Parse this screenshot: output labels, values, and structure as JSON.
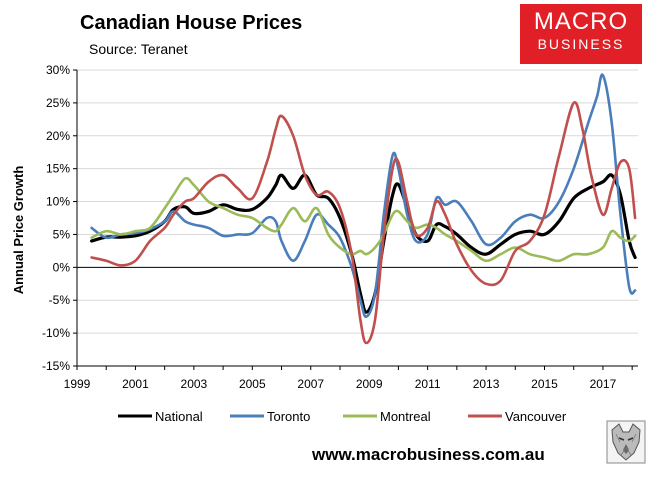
{
  "header": {
    "title": "Canadian House Prices",
    "subtitle": "Source: Teranet"
  },
  "logo": {
    "line1": "MACRO",
    "line2": "BUSINESS",
    "bg_color": "#e01f26"
  },
  "footer": {
    "url": "www.macrobusiness.com.au"
  },
  "chart_data": {
    "type": "line",
    "title": "Canadian House Prices",
    "ylabel": "Annual Price Growth",
    "xlabel": "",
    "xlim": [
      1999,
      2018.2
    ],
    "ylim": [
      -15,
      30
    ],
    "x_ticks": [
      "1999",
      "2001",
      "2003",
      "2005",
      "2007",
      "2009",
      "2011",
      "2013",
      "2015",
      "2017"
    ],
    "y_ticks": [
      "30%",
      "25%",
      "20%",
      "15%",
      "10%",
      "5%",
      "0%",
      "-5%",
      "-10%",
      "-15%"
    ],
    "grid": true,
    "legend_position": "bottom",
    "series": [
      {
        "name": "National",
        "color": "#000000",
        "points": [
          [
            1999.5,
            4.0
          ],
          [
            2000,
            4.6
          ],
          [
            2000.5,
            4.6
          ],
          [
            2001,
            4.8
          ],
          [
            2001.5,
            5.5
          ],
          [
            2002,
            7.0
          ],
          [
            2002.3,
            8.8
          ],
          [
            2002.7,
            9.2
          ],
          [
            2003,
            8.2
          ],
          [
            2003.5,
            8.5
          ],
          [
            2004,
            9.5
          ],
          [
            2004.5,
            8.8
          ],
          [
            2005,
            8.8
          ],
          [
            2005.5,
            10.5
          ],
          [
            2005.8,
            12.5
          ],
          [
            2006,
            14.0
          ],
          [
            2006.4,
            12.0
          ],
          [
            2006.8,
            14.0
          ],
          [
            2007.2,
            11.0
          ],
          [
            2007.6,
            10.5
          ],
          [
            2008,
            7.5
          ],
          [
            2008.4,
            2.0
          ],
          [
            2008.7,
            -4.0
          ],
          [
            2008.9,
            -6.8
          ],
          [
            2009.2,
            -4.0
          ],
          [
            2009.5,
            4.0
          ],
          [
            2009.8,
            11.0
          ],
          [
            2010,
            12.6
          ],
          [
            2010.3,
            9.0
          ],
          [
            2010.6,
            5.0
          ],
          [
            2011,
            4.0
          ],
          [
            2011.3,
            6.5
          ],
          [
            2011.6,
            6.2
          ],
          [
            2012,
            5.0
          ],
          [
            2012.5,
            3.0
          ],
          [
            2013,
            2.0
          ],
          [
            2013.5,
            3.5
          ],
          [
            2014,
            5.0
          ],
          [
            2014.5,
            5.5
          ],
          [
            2015,
            5.0
          ],
          [
            2015.5,
            7.0
          ],
          [
            2016,
            10.5
          ],
          [
            2016.5,
            12.0
          ],
          [
            2017,
            13.0
          ],
          [
            2017.3,
            14.0
          ],
          [
            2017.6,
            11.0
          ],
          [
            2017.9,
            4.0
          ],
          [
            2018.1,
            1.5
          ]
        ]
      },
      {
        "name": "Toronto",
        "color": "#4a7ebb",
        "points": [
          [
            1999.5,
            6.0
          ],
          [
            2000,
            4.5
          ],
          [
            2000.5,
            5.0
          ],
          [
            2001,
            5.2
          ],
          [
            2001.5,
            5.8
          ],
          [
            2002,
            7.0
          ],
          [
            2002.3,
            8.5
          ],
          [
            2002.7,
            7.0
          ],
          [
            2003,
            6.5
          ],
          [
            2003.5,
            6.0
          ],
          [
            2004,
            4.8
          ],
          [
            2004.5,
            5.0
          ],
          [
            2005,
            5.2
          ],
          [
            2005.5,
            7.5
          ],
          [
            2005.8,
            7.0
          ],
          [
            2006,
            4.0
          ],
          [
            2006.4,
            1.0
          ],
          [
            2006.8,
            4.0
          ],
          [
            2007.2,
            8.0
          ],
          [
            2007.6,
            6.5
          ],
          [
            2008,
            4.5
          ],
          [
            2008.4,
            0.0
          ],
          [
            2008.7,
            -5.0
          ],
          [
            2008.9,
            -7.5
          ],
          [
            2009.2,
            -4.0
          ],
          [
            2009.5,
            8.0
          ],
          [
            2009.8,
            17.0
          ],
          [
            2010,
            15.0
          ],
          [
            2010.3,
            8.0
          ],
          [
            2010.6,
            4.0
          ],
          [
            2011,
            5.0
          ],
          [
            2011.3,
            10.5
          ],
          [
            2011.6,
            9.5
          ],
          [
            2012,
            10.0
          ],
          [
            2012.5,
            7.0
          ],
          [
            2013,
            3.5
          ],
          [
            2013.5,
            4.5
          ],
          [
            2014,
            7.0
          ],
          [
            2014.5,
            8.0
          ],
          [
            2015,
            7.5
          ],
          [
            2015.5,
            10.0
          ],
          [
            2016,
            15.0
          ],
          [
            2016.5,
            22.0
          ],
          [
            2016.8,
            26.0
          ],
          [
            2017,
            29.2
          ],
          [
            2017.3,
            22.0
          ],
          [
            2017.6,
            8.0
          ],
          [
            2017.9,
            -3.0
          ],
          [
            2018.1,
            -3.5
          ]
        ]
      },
      {
        "name": "Montreal",
        "color": "#9bbb59",
        "points": [
          [
            1999.5,
            4.5
          ],
          [
            2000,
            5.5
          ],
          [
            2000.5,
            5.0
          ],
          [
            2001,
            5.5
          ],
          [
            2001.5,
            6.0
          ],
          [
            2002,
            9.0
          ],
          [
            2002.3,
            11.0
          ],
          [
            2002.7,
            13.5
          ],
          [
            2003,
            12.5
          ],
          [
            2003.5,
            10.0
          ],
          [
            2004,
            9.0
          ],
          [
            2004.5,
            8.0
          ],
          [
            2005,
            7.5
          ],
          [
            2005.5,
            6.0
          ],
          [
            2005.8,
            5.5
          ],
          [
            2006,
            6.5
          ],
          [
            2006.4,
            9.0
          ],
          [
            2006.8,
            7.0
          ],
          [
            2007.2,
            9.0
          ],
          [
            2007.6,
            5.0
          ],
          [
            2008,
            3.0
          ],
          [
            2008.4,
            2.0
          ],
          [
            2008.7,
            2.5
          ],
          [
            2008.9,
            2.0
          ],
          [
            2009.2,
            3.0
          ],
          [
            2009.5,
            5.0
          ],
          [
            2009.8,
            8.0
          ],
          [
            2010,
            8.5
          ],
          [
            2010.3,
            7.0
          ],
          [
            2010.6,
            6.0
          ],
          [
            2011,
            6.5
          ],
          [
            2011.3,
            6.0
          ],
          [
            2011.6,
            5.0
          ],
          [
            2012,
            4.0
          ],
          [
            2012.5,
            2.5
          ],
          [
            2013,
            1.0
          ],
          [
            2013.5,
            2.0
          ],
          [
            2014,
            3.0
          ],
          [
            2014.5,
            2.0
          ],
          [
            2015,
            1.5
          ],
          [
            2015.5,
            1.0
          ],
          [
            2016,
            2.0
          ],
          [
            2016.5,
            2.0
          ],
          [
            2017,
            3.0
          ],
          [
            2017.3,
            5.5
          ],
          [
            2017.6,
            4.5
          ],
          [
            2017.9,
            4.0
          ],
          [
            2018.1,
            4.8
          ]
        ]
      },
      {
        "name": "Vancouver",
        "color": "#c0504d",
        "points": [
          [
            1999.5,
            1.5
          ],
          [
            2000,
            1.0
          ],
          [
            2000.5,
            0.3
          ],
          [
            2001,
            1.0
          ],
          [
            2001.5,
            4.0
          ],
          [
            2002,
            6.0
          ],
          [
            2002.3,
            8.0
          ],
          [
            2002.7,
            10.0
          ],
          [
            2003,
            10.5
          ],
          [
            2003.5,
            13.0
          ],
          [
            2004,
            14.0
          ],
          [
            2004.5,
            12.0
          ],
          [
            2005,
            10.5
          ],
          [
            2005.5,
            16.0
          ],
          [
            2005.8,
            21.0
          ],
          [
            2006,
            23.0
          ],
          [
            2006.4,
            20.0
          ],
          [
            2006.8,
            14.0
          ],
          [
            2007.2,
            11.0
          ],
          [
            2007.6,
            11.5
          ],
          [
            2008,
            9.0
          ],
          [
            2008.4,
            2.0
          ],
          [
            2008.7,
            -8.0
          ],
          [
            2008.9,
            -11.5
          ],
          [
            2009.2,
            -8.0
          ],
          [
            2009.5,
            5.0
          ],
          [
            2009.8,
            15.0
          ],
          [
            2010,
            16.0
          ],
          [
            2010.3,
            10.0
          ],
          [
            2010.6,
            5.0
          ],
          [
            2011,
            6.0
          ],
          [
            2011.3,
            10.0
          ],
          [
            2011.6,
            8.0
          ],
          [
            2012,
            3.5
          ],
          [
            2012.5,
            -0.5
          ],
          [
            2013,
            -2.5
          ],
          [
            2013.5,
            -2.0
          ],
          [
            2014,
            2.5
          ],
          [
            2014.5,
            4.0
          ],
          [
            2015,
            8.0
          ],
          [
            2015.5,
            17.0
          ],
          [
            2016,
            25.0
          ],
          [
            2016.3,
            21.0
          ],
          [
            2016.6,
            14.0
          ],
          [
            2017,
            8.0
          ],
          [
            2017.3,
            12.0
          ],
          [
            2017.6,
            16.0
          ],
          [
            2017.9,
            15.0
          ],
          [
            2018.1,
            7.5
          ]
        ]
      }
    ]
  }
}
